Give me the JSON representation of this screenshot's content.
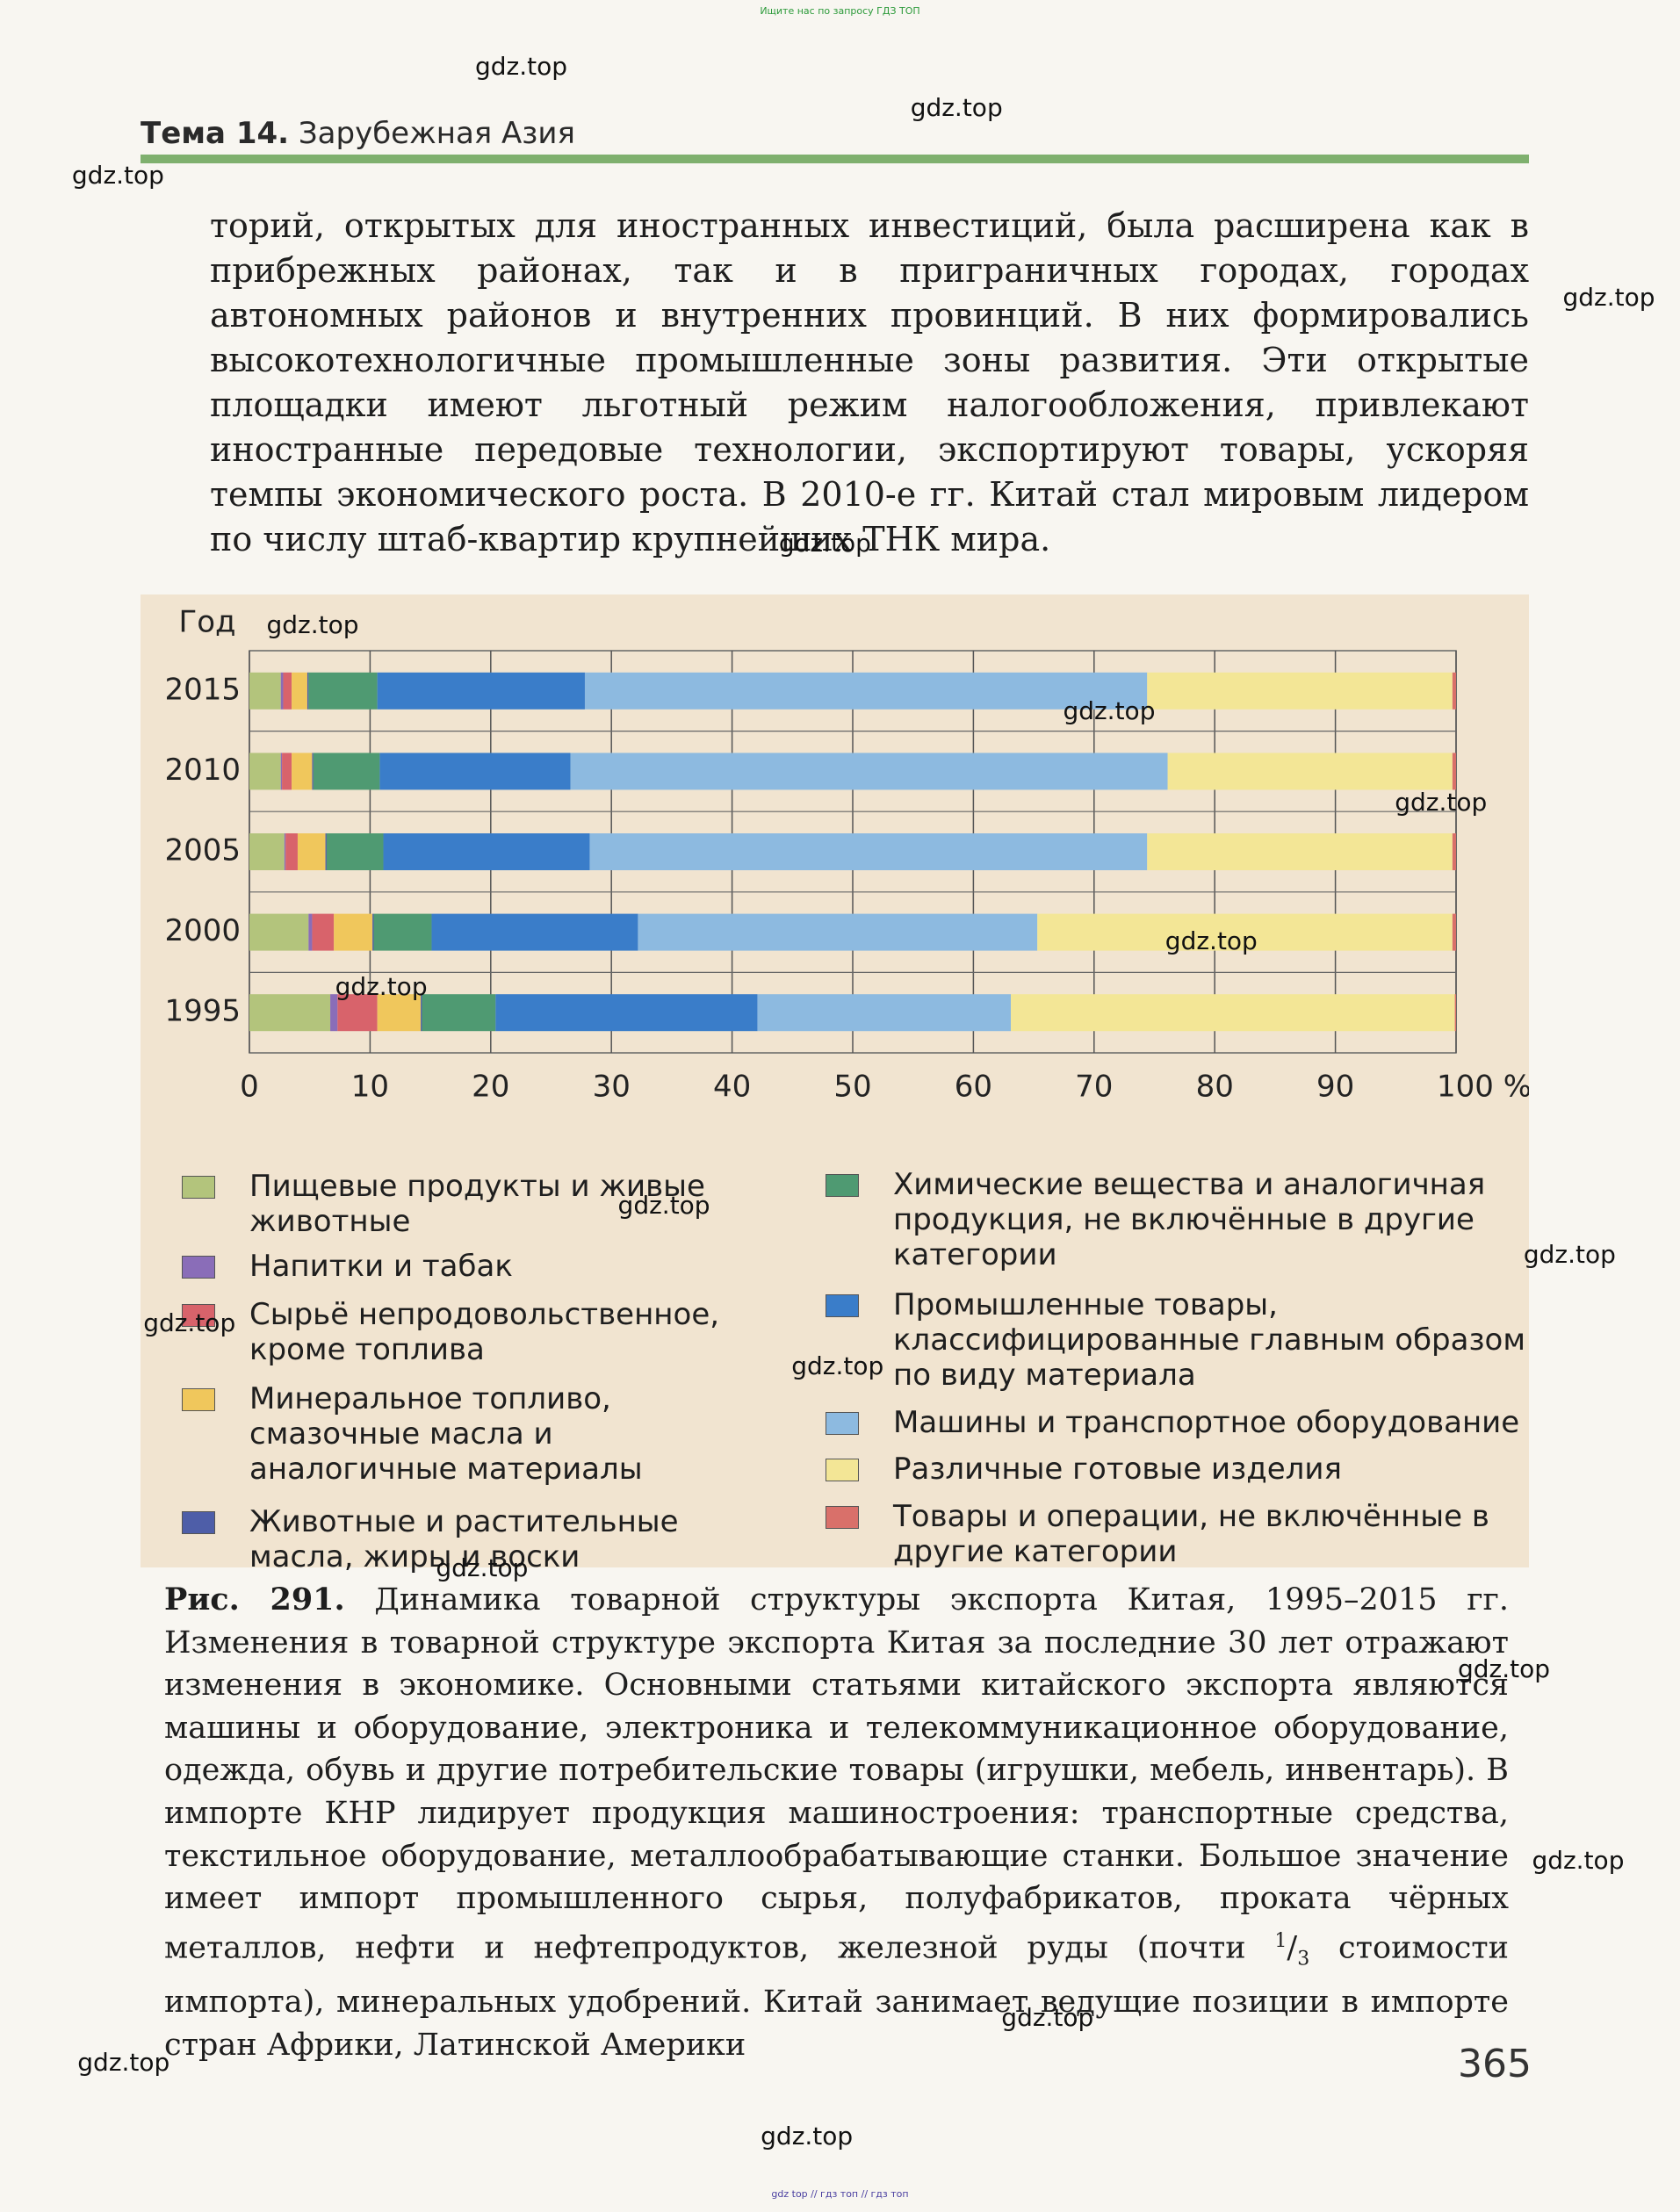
{
  "top_note": "Ищите нас по запросу ГДЗ ТОП",
  "bottom_note": "gdz top // гдз топ // гдз топ",
  "header": {
    "label": "Тема 14.",
    "title": "Зарубежная Азия"
  },
  "paragraph": "торий, открытых для иностранных инвестиций, была расширена как в прибрежных районах, так и в приграничных городах, городах автономных районов и внутренних провинций. В них формировались высокотехнологичные промышленные зоны развития. Эти открытые площадки имеют льготный режим налогообложения, привлекают иностранные передовые технологии, экспортируют товары, ускоряя темпы экономического роста. В 2010-е гг. Китай стал мировым лидером по числу штаб-квартир крупнейших ТНК мира.",
  "chart_data": {
    "type": "stacked-barh",
    "y_label": "Год",
    "categories": [
      "2015",
      "2010",
      "2005",
      "2000",
      "1995"
    ],
    "xlim": [
      0,
      100
    ],
    "xticks": [
      0,
      10,
      20,
      30,
      40,
      50,
      60,
      70,
      80,
      90,
      {
        "value": 100,
        "label": "100 %"
      }
    ],
    "grid": true,
    "series": [
      {
        "name": "Пищевые продукты и живые животные",
        "color": "#b3c47c",
        "values": [
          2.6,
          2.6,
          2.9,
          4.9,
          6.7
        ]
      },
      {
        "name": "Напитки и табак",
        "color": "#8a6db8",
        "values": [
          0.2,
          0.1,
          0.1,
          0.3,
          0.6
        ]
      },
      {
        "name": "Сырьё непродовольственное, кроме топлива",
        "color": "#d8636b",
        "values": [
          0.7,
          0.8,
          1.0,
          1.8,
          3.3
        ]
      },
      {
        "name": "Минеральное топливо, смазочные масла и аналогичные материалы",
        "color": "#f0c75c",
        "values": [
          1.3,
          1.7,
          2.3,
          3.2,
          3.6
        ]
      },
      {
        "name": "Животные и растительные масла, жиры и воски",
        "color": "#4e5ea8",
        "values": [
          0.1,
          0.1,
          0.1,
          0.1,
          0.1
        ]
      },
      {
        "name": "Химические вещества и аналогичная продукция, не включённые в другие категории",
        "color": "#4f9a72",
        "values": [
          5.7,
          5.5,
          4.7,
          4.8,
          6.1
        ]
      },
      {
        "name": "Промышленные товары, классифицированные главным образом по виду материала",
        "color": "#3a7dc9",
        "values": [
          17.2,
          15.8,
          17.1,
          17.1,
          21.7
        ]
      },
      {
        "name": "Машины и транспортное оборудование",
        "color": "#8dbae0",
        "values": [
          46.6,
          49.5,
          46.2,
          33.1,
          21.0
        ]
      },
      {
        "name": "Различные готовые изделия",
        "color": "#f3e696",
        "values": [
          25.3,
          23.6,
          25.3,
          34.4,
          36.8
        ]
      },
      {
        "name": "Товары и операции, не включённые в другие категории",
        "color": "#d9706a",
        "values": [
          0.3,
          0.3,
          0.3,
          0.3,
          0.1
        ]
      }
    ]
  },
  "caption": {
    "label": "Рис. 291.",
    "text_before": "Динамика товарной структуры экспорта Китая, 1995–2015 гг. Изменения в товарной структуре экспорта Китая за последние 30 лет отражают изменения в экономике. Основными статьями китайского экспорта являются машины и оборудование, электроника и телекоммуникационное оборудование, одежда, обувь и другие потребительские товары (игрушки, мебель, инвентарь). В импорте КНР лидирует продукция машиностроения: транспортные средства, текстильное оборудование, металлообрабатывающие станки. Большое значение имеет импорт промышленного сырья, полуфабрикатов, проката чёрных металлов, нефти и нефтепродуктов, железной руды (почти",
    "fraction_num": "1",
    "fraction_den": "3",
    "text_after": "стоимости импорта), минеральных удобрений. Китай занимает ведущие позиции в импорте стран Африки, Латинской Америки"
  },
  "page_number": "365",
  "watermarks": [
    "gdz.top",
    "gdz.top",
    "gdz.top",
    "gdz.top",
    "gdz.top",
    "gdz.top",
    "gdz.top",
    "gdz.top",
    "gdz.top",
    "gdz.top",
    "gdz.top",
    "gdz.top",
    "gdz.top",
    "gdz.top",
    "gdz.top",
    "gdz.top",
    "gdz.top",
    "gdz.top",
    "gdz.top",
    "gdz.top"
  ]
}
